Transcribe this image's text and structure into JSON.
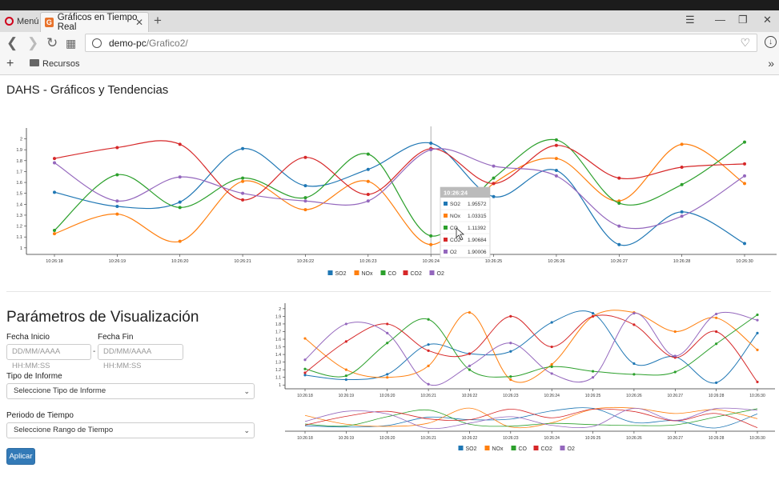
{
  "browser": {
    "menu_label": "Menú",
    "tab_title": "Gráficos en Tiempo Real",
    "tab_favicon_letter": "G",
    "url_host": "demo-pc",
    "url_path": "/Grafico2/",
    "bookmark_label": "Recursos"
  },
  "page": {
    "title": "DAHS - Gráficos y Tendencias",
    "params_title": "Parámetros de Visualización",
    "fecha_inicio_label": "Fecha Inicio",
    "fecha_fin_label": "Fecha Fin",
    "date_placeholder": "DD/MM/AAAA HH:MM:SS",
    "range_separator": "-",
    "tipo_informe_label": "Tipo de Informe",
    "tipo_informe_value": "Seleccione Tipo de Informe",
    "periodo_label": "Periodo de Tiempo",
    "periodo_value": "Seleccione Rango de Tiempo",
    "apply_label": "Aplicar"
  },
  "colors": {
    "SO2": "#1f77b4",
    "NOx": "#ff7f0e",
    "CO": "#2ca02c",
    "CO2": "#d62728",
    "O2": "#9467bd"
  },
  "chart_data": [
    {
      "type": "line",
      "x": [
        "10:26:18",
        "10:26:19",
        "10:26:20",
        "10:26:21",
        "10:26:22",
        "10:26:23",
        "10:26:24",
        "10:26:25",
        "10:26:26",
        "10:26:27",
        "10:26:28",
        "10:26:30"
      ],
      "yticks": [
        "1",
        "1.1",
        "1.2",
        "1.3",
        "1.4",
        "1.5",
        "1.6",
        "1.7",
        "1.8",
        "1.9",
        "2"
      ],
      "ylim": [
        0.94,
        2.07
      ],
      "series": [
        {
          "name": "SO2",
          "values": [
            1.51,
            1.38,
            1.42,
            1.91,
            1.57,
            1.72,
            1.96,
            1.47,
            1.71,
            1.03,
            1.33,
            1.04
          ]
        },
        {
          "name": "NOx",
          "values": [
            1.13,
            1.31,
            1.06,
            1.61,
            1.35,
            1.61,
            1.03,
            1.59,
            1.82,
            1.43,
            1.95,
            1.59
          ]
        },
        {
          "name": "CO",
          "values": [
            1.16,
            1.67,
            1.37,
            1.64,
            1.46,
            1.86,
            1.11,
            1.64,
            1.99,
            1.41,
            1.58,
            1.97
          ]
        },
        {
          "name": "CO2",
          "values": [
            1.82,
            1.92,
            1.95,
            1.44,
            1.83,
            1.49,
            1.91,
            1.59,
            1.94,
            1.64,
            1.74,
            1.77
          ]
        },
        {
          "name": "O2",
          "values": [
            1.78,
            1.43,
            1.65,
            1.5,
            1.43,
            1.43,
            1.9,
            1.75,
            1.66,
            1.2,
            1.29,
            1.66
          ]
        }
      ],
      "tooltip": {
        "title": "10:26:24",
        "rows": [
          {
            "name": "SO2",
            "value": "1.95572"
          },
          {
            "name": "NOx",
            "value": "1.03315"
          },
          {
            "name": "CO",
            "value": "1.11392"
          },
          {
            "name": "CO2",
            "value": "1.90684"
          },
          {
            "name": "O2",
            "value": "1.90006"
          }
        ]
      },
      "legend_position": "bottom"
    },
    {
      "type": "line",
      "x": [
        "10:26:18",
        "10:26:19",
        "10:26:20",
        "10:26:21",
        "10:26:22",
        "10:26:23",
        "10:26:24",
        "10:26:25",
        "10:26:26",
        "10:26:27",
        "10:26:28",
        "10:26:30"
      ],
      "yticks": [
        "1",
        "1.1",
        "1.2",
        "1.3",
        "1.4",
        "1.5",
        "1.6",
        "1.7",
        "1.8",
        "1.9",
        "2"
      ],
      "ylim": [
        0.95,
        2.03
      ],
      "series": [
        {
          "name": "SO2",
          "values": [
            1.13,
            1.07,
            1.14,
            1.53,
            1.41,
            1.44,
            1.82,
            1.94,
            1.28,
            1.37,
            1.03,
            1.68
          ]
        },
        {
          "name": "NOx",
          "values": [
            1.61,
            1.2,
            1.1,
            1.25,
            1.95,
            1.07,
            1.27,
            1.9,
            1.95,
            1.7,
            1.88,
            1.46
          ]
        },
        {
          "name": "CO",
          "values": [
            1.21,
            1.12,
            1.55,
            1.86,
            1.2,
            1.11,
            1.24,
            1.18,
            1.14,
            1.17,
            1.54,
            1.92
          ]
        },
        {
          "name": "CO2",
          "values": [
            1.16,
            1.57,
            1.8,
            1.45,
            1.41,
            1.9,
            1.5,
            1.9,
            1.79,
            1.36,
            1.7,
            1.04
          ]
        },
        {
          "name": "O2",
          "values": [
            1.33,
            1.8,
            1.68,
            1.01,
            1.25,
            1.55,
            1.15,
            1.1,
            1.94,
            1.38,
            1.93,
            1.85
          ]
        }
      ],
      "legend_position": "bottom"
    }
  ],
  "navigator": {
    "x": [
      "10:26:18",
      "10:26:19",
      "10:26:20",
      "10:26:21",
      "10:26:22",
      "10:26:23",
      "10:26:24",
      "10:26:25",
      "10:26:26",
      "10:26:27",
      "10:26:28",
      "10:26:30"
    ]
  }
}
